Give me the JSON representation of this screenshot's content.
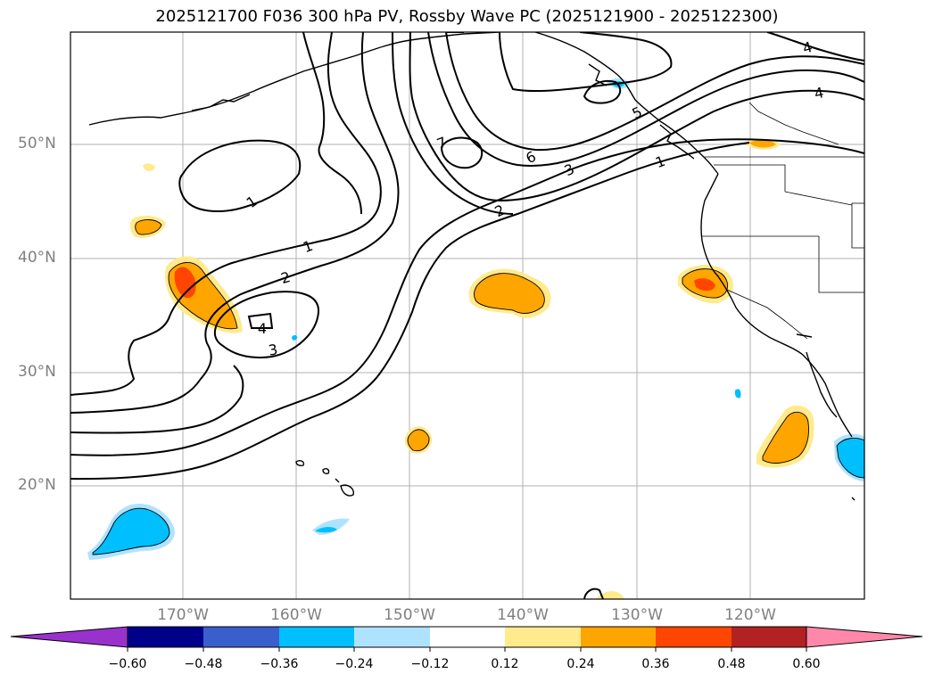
{
  "title": "2025121700 F036 300 hPa PV, Rossby Wave PC (2025121900 - 2025122300)",
  "lat_labels": [
    "50°N",
    "40°N",
    "30°N",
    "20°N"
  ],
  "lon_labels": [
    "170°W",
    "160°W",
    "150°W",
    "140°W",
    "130°W",
    "120°W"
  ],
  "contour_labels": [
    "1",
    "1",
    "1",
    "2",
    "2",
    "3",
    "3",
    "4",
    "4",
    "4",
    "5",
    "6",
    "7"
  ],
  "colorbar": {
    "ticks": [
      "−0.60",
      "−0.48",
      "−0.36",
      "−0.24",
      "−0.12",
      "0.12",
      "0.24",
      "0.36",
      "0.48",
      "0.60"
    ],
    "colors": [
      "#9932cc",
      "#00008b",
      "#3a5fcd",
      "#00bfff",
      "#aee3ff",
      "#ffffff",
      "#ffea8c",
      "#ffa500",
      "#ff4500",
      "#b22222",
      "#ff88aa"
    ]
  },
  "colors": {
    "contour": "#000000",
    "coast": "#000000",
    "grid": "#b0b0b0",
    "label": "#808080"
  }
}
